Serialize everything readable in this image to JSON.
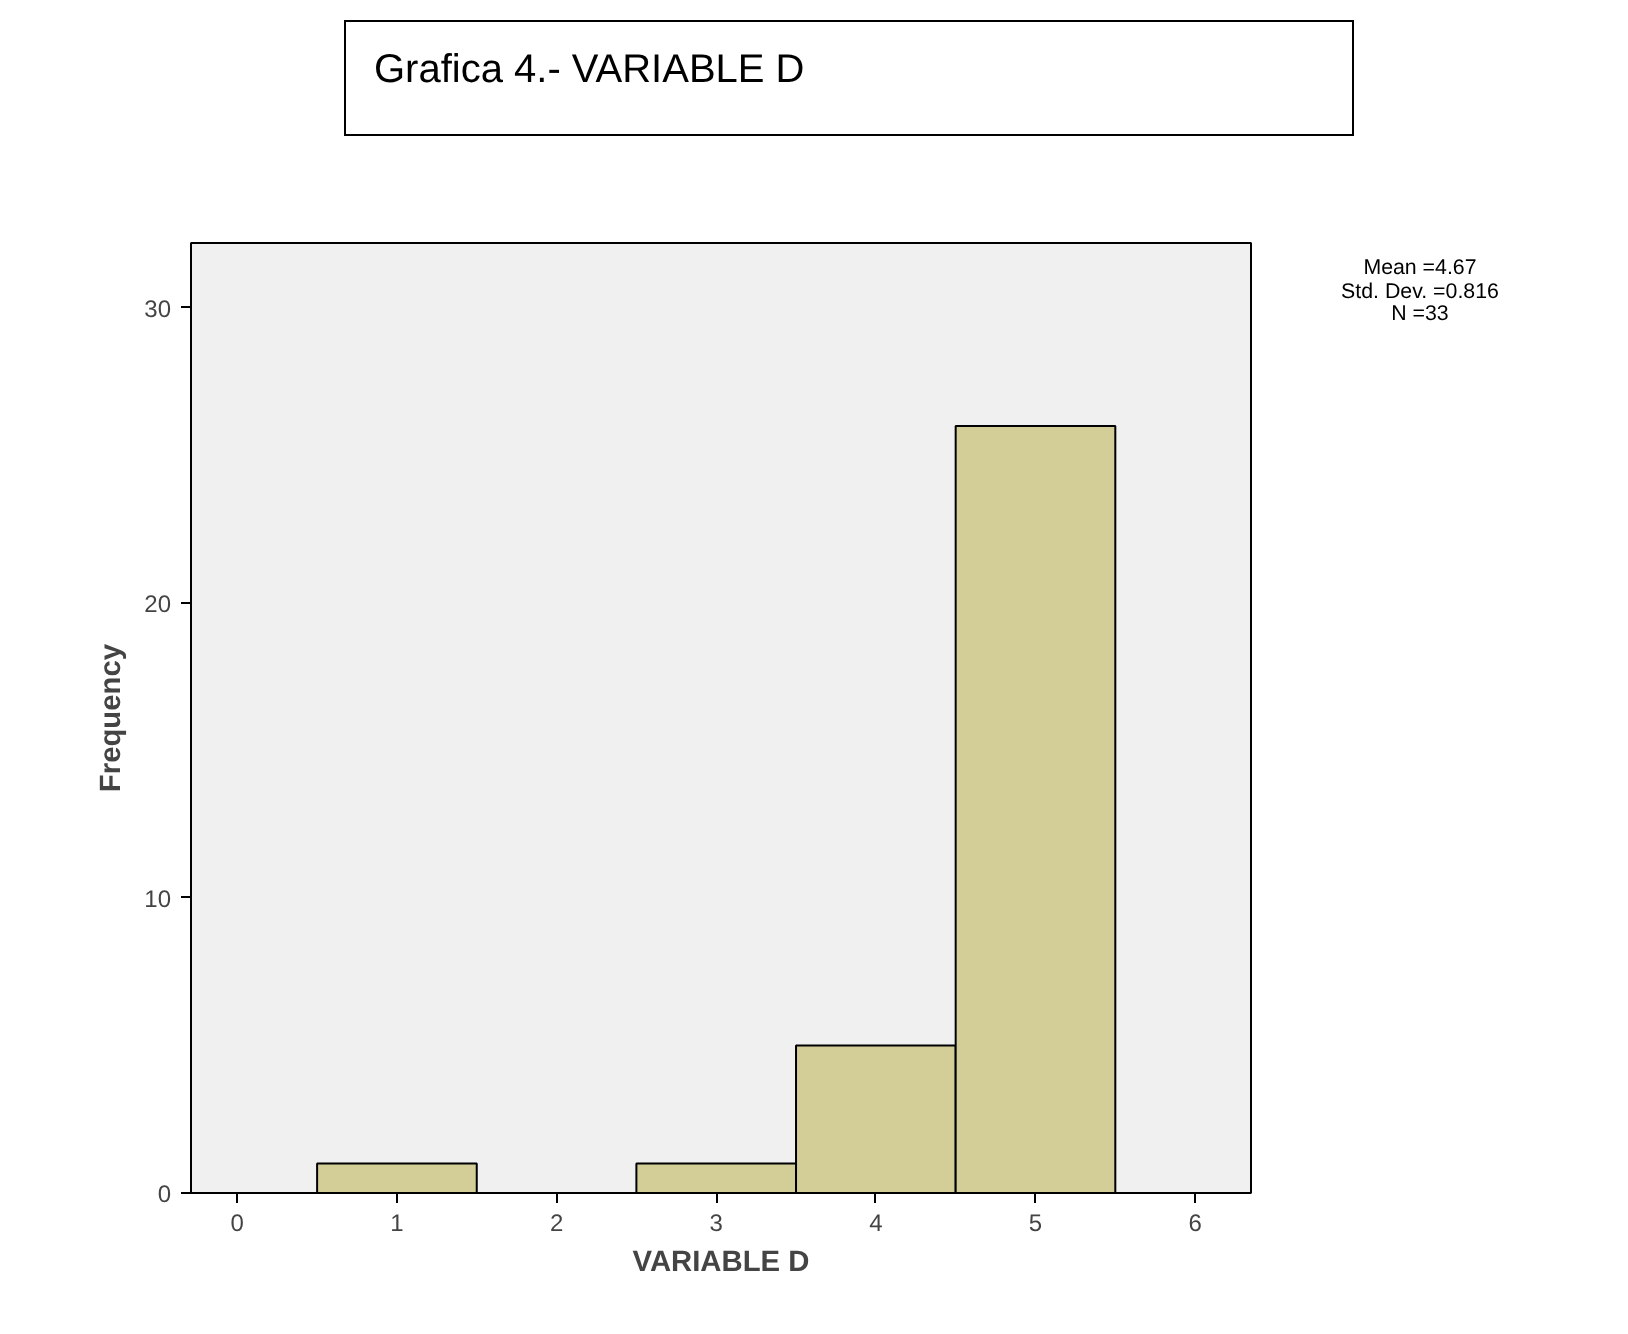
{
  "chart_data": {
    "type": "histogram",
    "title": "Grafica 4.- VARIABLE D",
    "xlabel": "VARIABLE D",
    "ylabel": "Frequency",
    "bins": [
      0.5,
      1.5,
      2.5,
      3.5,
      4.5,
      5.5
    ],
    "values": [
      1,
      0,
      1,
      5,
      26
    ],
    "color": "#d3ce97",
    "xlim": [
      -0.29,
      6.35
    ],
    "ylim": [
      0,
      32.2
    ],
    "xticks": [
      0,
      1,
      2,
      3,
      4,
      5,
      6
    ],
    "yticks": [
      0,
      10,
      20,
      30
    ],
    "grid": false,
    "annotations": [
      "Mean =4.67",
      "Std. Dev. =0.816",
      "N =33"
    ]
  }
}
